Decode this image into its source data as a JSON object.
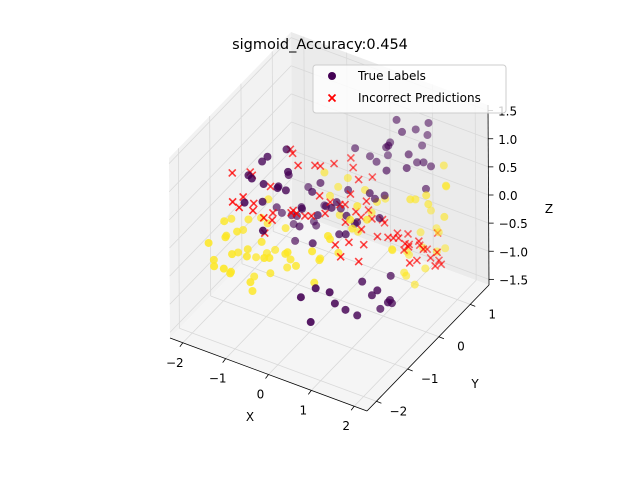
{
  "chart_data": {
    "type": "scatter",
    "title": "sigmoid_Accuracy:0.454",
    "xlabel": "X",
    "ylabel": "Y",
    "zlabel": "Z",
    "xlim": [
      -2.3,
      2.3
    ],
    "ylim": [
      -2.3,
      1.6
    ],
    "zlim": [
      -1.6,
      1.6
    ],
    "x_ticks": [
      "−2",
      "−1",
      "0",
      "1",
      "2"
    ],
    "y_ticks": [
      "−2",
      "−1",
      "0",
      "1"
    ],
    "z_ticks": [
      "1.5",
      "1.0",
      "0.5",
      "0.0",
      "−0.5",
      "−1.0",
      "−1.5"
    ],
    "grid": true,
    "legend": {
      "position": "top-right",
      "entries": [
        {
          "label": "True Labels",
          "marker": "circle",
          "color": "#440154"
        },
        {
          "label": "Incorrect Predictions",
          "marker": "x",
          "color": "#ff0000"
        }
      ]
    },
    "colors": {
      "class0": "#440154",
      "class1": "#fde725",
      "incorrect": "#ff0000"
    },
    "series": [
      {
        "name": "True Labels",
        "class0_points": [
          [
            -0.9,
            -1.2,
            0.9
          ],
          [
            -1.1,
            -0.8,
            1.1
          ],
          [
            -0.7,
            -1.0,
            0.8
          ],
          [
            -1.2,
            -1.4,
            0.6
          ],
          [
            -0.5,
            -1.3,
            1.0
          ],
          [
            -0.8,
            -0.6,
            1.2
          ],
          [
            -1.0,
            -1.1,
            0.5
          ],
          [
            -0.6,
            -0.9,
            0.7
          ],
          [
            -1.3,
            -0.7,
            0.9
          ],
          [
            -0.4,
            -1.1,
            1.2
          ],
          [
            -0.9,
            -0.4,
            0.6
          ],
          [
            -1.1,
            -1.3,
            1.0
          ],
          [
            -0.3,
            -0.8,
            0.4
          ],
          [
            -0.7,
            -1.5,
            0.3
          ],
          [
            -1.4,
            -1.0,
            0.8
          ],
          [
            0.8,
            0.9,
            1.1
          ],
          [
            1.1,
            0.7,
            0.9
          ],
          [
            0.9,
            1.2,
            1.0
          ],
          [
            1.3,
            0.9,
            0.7
          ],
          [
            0.6,
            1.0,
            1.2
          ],
          [
            1.0,
            1.1,
            0.5
          ],
          [
            1.2,
            0.5,
            0.8
          ],
          [
            0.7,
            0.6,
            1.0
          ],
          [
            1.4,
            1.0,
            0.6
          ],
          [
            0.5,
            0.8,
            0.8
          ],
          [
            1.1,
            1.3,
            0.9
          ],
          [
            0.8,
            0.4,
            0.7
          ],
          [
            1.5,
            0.7,
            0.4
          ],
          [
            0.9,
            1.4,
            0.6
          ],
          [
            1.2,
            1.2,
            1.2
          ],
          [
            0.3,
            -0.2,
            0.1
          ],
          [
            -0.2,
            0.3,
            -0.2
          ],
          [
            0.1,
            -0.4,
            0.3
          ],
          [
            -0.4,
            0.1,
            -0.1
          ],
          [
            0.2,
            0.2,
            -0.3
          ],
          [
            0.0,
            -0.1,
            0.2
          ],
          [
            -0.3,
            -0.3,
            0.0
          ],
          [
            0.4,
            0.0,
            -0.1
          ],
          [
            -0.1,
            0.4,
            0.1
          ],
          [
            0.2,
            -0.3,
            -0.2
          ],
          [
            -0.6,
            0.2,
            0.2
          ],
          [
            0.5,
            -0.5,
            0.0
          ],
          [
            -0.2,
            -0.6,
            -0.3
          ],
          [
            0.6,
            0.3,
            0.2
          ],
          [
            -0.5,
            -0.2,
            0.3
          ],
          [
            1.4,
            -0.9,
            -0.6
          ],
          [
            1.6,
            -0.6,
            -0.8
          ],
          [
            1.2,
            -1.1,
            -0.9
          ],
          [
            1.5,
            -0.4,
            -1.0
          ],
          [
            1.1,
            -0.8,
            -0.5
          ],
          [
            1.7,
            -0.8,
            -0.7
          ],
          [
            1.3,
            -0.5,
            -1.1
          ],
          [
            1.0,
            -1.2,
            -0.8
          ],
          [
            1.6,
            -1.0,
            -0.4
          ],
          [
            1.4,
            -0.3,
            -0.6
          ],
          [
            -1.5,
            0.5,
            -0.8
          ],
          [
            -1.2,
            0.8,
            -1.0
          ],
          [
            -1.7,
            0.3,
            -0.6
          ],
          [
            -1.0,
            0.6,
            -0.9
          ],
          [
            -1.4,
            0.9,
            -0.5
          ],
          [
            -1.6,
            0.7,
            -1.1
          ],
          [
            -1.3,
            0.4,
            -0.7
          ],
          [
            -1.1,
            1.0,
            -0.8
          ],
          [
            -1.8,
            0.6,
            -0.9
          ],
          [
            -1.2,
            0.2,
            -1.0
          ],
          [
            0.6,
            -1.6,
            -0.3
          ],
          [
            0.9,
            -1.4,
            -0.6
          ],
          [
            0.4,
            -1.8,
            -0.4
          ],
          [
            0.7,
            -1.9,
            -0.7
          ],
          [
            1.0,
            -1.7,
            -0.2
          ],
          [
            0.2,
            0.9,
            0.4
          ],
          [
            -0.1,
            1.1,
            0.3
          ],
          [
            0.3,
            1.2,
            0.6
          ],
          [
            -0.3,
            0.9,
            0.5
          ],
          [
            0.1,
            1.4,
            0.2
          ],
          [
            0.9,
            0.2,
            0.4
          ],
          [
            1.0,
            -0.1,
            0.2
          ],
          [
            0.7,
            0.0,
            0.5
          ],
          [
            -0.8,
            -0.2,
            -0.4
          ],
          [
            -0.9,
            0.0,
            -0.2
          ]
        ],
        "class1_points": [
          [
            -1.5,
            -0.9,
            -0.6
          ],
          [
            -1.7,
            -0.6,
            -0.3
          ],
          [
            -1.3,
            -1.2,
            -0.5
          ],
          [
            -1.8,
            -0.8,
            -0.8
          ],
          [
            -1.4,
            -0.4,
            -0.4
          ],
          [
            -1.6,
            -1.1,
            -0.2
          ],
          [
            -1.9,
            -0.5,
            -0.6
          ],
          [
            -1.2,
            -0.7,
            -0.7
          ],
          [
            -1.5,
            -1.4,
            -0.4
          ],
          [
            -1.7,
            -0.2,
            -0.5
          ],
          [
            -1.3,
            -0.3,
            -0.9
          ],
          [
            -1.1,
            -1.0,
            -0.3
          ],
          [
            -2.0,
            -0.9,
            -0.5
          ],
          [
            -1.6,
            -0.5,
            -1.0
          ],
          [
            -1.4,
            -1.6,
            -0.6
          ],
          [
            -0.9,
            -1.0,
            -0.8
          ],
          [
            -1.0,
            -1.5,
            -0.7
          ],
          [
            -1.8,
            -1.2,
            -0.3
          ],
          [
            -1.2,
            -0.1,
            -0.6
          ],
          [
            -0.8,
            -0.6,
            -0.9
          ],
          [
            -1.9,
            -1.1,
            -0.1
          ],
          [
            -1.5,
            -0.7,
            -1.2
          ],
          [
            -1.1,
            -1.3,
            -1.0
          ],
          [
            -2.1,
            -0.6,
            -0.4
          ],
          [
            -1.6,
            -1.3,
            -0.8
          ],
          [
            -0.4,
            -1.2,
            -0.2
          ],
          [
            -0.2,
            -1.4,
            0.0
          ],
          [
            -0.6,
            -1.6,
            -0.1
          ],
          [
            -0.3,
            -1.0,
            -0.5
          ],
          [
            -0.7,
            -1.3,
            -0.3
          ],
          [
            1.2,
            1.0,
            -0.9
          ],
          [
            1.4,
            0.8,
            -1.1
          ],
          [
            1.0,
            1.2,
            -0.8
          ],
          [
            1.5,
            1.1,
            -0.6
          ],
          [
            1.1,
            0.6,
            -1.2
          ],
          [
            1.3,
            1.3,
            -0.7
          ],
          [
            0.9,
            0.9,
            -1.0
          ],
          [
            1.6,
            0.9,
            -0.8
          ],
          [
            1.2,
            0.4,
            -1.0
          ],
          [
            0.8,
            1.1,
            -1.2
          ],
          [
            1.0,
            0.3,
            -0.6
          ],
          [
            1.3,
            0.6,
            -1.3
          ],
          [
            1.5,
            1.3,
            -1.0
          ],
          [
            0.7,
            0.7,
            -0.9
          ],
          [
            1.1,
            1.4,
            -0.5
          ],
          [
            1.7,
            0.5,
            0.3
          ],
          [
            1.9,
            0.8,
            0.5
          ],
          [
            1.6,
            1.2,
            0.2
          ],
          [
            1.8,
            0.3,
            0.6
          ],
          [
            2.0,
            0.6,
            0.1
          ],
          [
            1.5,
            0.2,
            0.5
          ],
          [
            1.7,
            1.0,
            0.7
          ],
          [
            1.4,
            0.5,
            0.3
          ],
          [
            0.8,
            -0.7,
            0.3
          ],
          [
            1.0,
            -0.5,
            0.4
          ],
          [
            0.5,
            -1.0,
            0.2
          ],
          [
            0.7,
            -0.4,
            0.5
          ],
          [
            0.3,
            -1.3,
            0.1
          ],
          [
            0.9,
            -0.9,
            0.6
          ],
          [
            0.6,
            -1.2,
            0.4
          ],
          [
            -0.6,
            0.5,
            -0.2
          ],
          [
            -0.4,
            0.8,
            0.0
          ],
          [
            -0.8,
            0.6,
            0.1
          ],
          [
            -0.3,
            0.4,
            -0.4
          ],
          [
            -0.7,
            0.9,
            -0.3
          ],
          [
            0.3,
            0.6,
            -0.3
          ],
          [
            0.0,
            0.8,
            -0.1
          ],
          [
            0.5,
            0.5,
            0.0
          ],
          [
            0.2,
            0.3,
            -0.5
          ],
          [
            0.4,
            0.9,
            -0.2
          ],
          [
            -1.9,
            -1.6,
            -0.2
          ],
          [
            -1.7,
            -1.7,
            -0.5
          ],
          [
            -2.0,
            -1.3,
            -0.7
          ],
          [
            -1.4,
            -1.8,
            -0.4
          ],
          [
            -1.6,
            -0.1,
            -0.2
          ],
          [
            0.1,
            -0.8,
            -0.4
          ],
          [
            -0.1,
            -0.5,
            -0.6
          ],
          [
            0.4,
            -0.6,
            -0.3
          ],
          [
            -0.5,
            -0.9,
            -0.5
          ],
          [
            0.2,
            -1.1,
            -0.6
          ]
        ]
      },
      {
        "name": "Incorrect Predictions",
        "points": [
          [
            -1.3,
            -1.0,
            0.2
          ],
          [
            -1.0,
            -0.8,
            0.0
          ],
          [
            -1.5,
            -0.7,
            0.1
          ],
          [
            -1.2,
            -0.5,
            -0.1
          ],
          [
            -0.9,
            -1.2,
            0.3
          ],
          [
            -1.4,
            -0.3,
            0.2
          ],
          [
            -1.1,
            -0.9,
            -0.2
          ],
          [
            -0.7,
            -0.6,
            0.1
          ],
          [
            -1.6,
            -0.9,
            0.3
          ],
          [
            -0.8,
            -0.4,
            0.0
          ],
          [
            -0.5,
            -0.7,
            0.2
          ],
          [
            -0.6,
            -0.3,
            -0.1
          ],
          [
            -0.3,
            -0.5,
            0.1
          ],
          [
            -0.4,
            -0.1,
            0.2
          ],
          [
            -0.2,
            -0.2,
            0.0
          ],
          [
            0.0,
            0.0,
            0.1
          ],
          [
            0.2,
            -0.1,
            -0.1
          ],
          [
            0.1,
            0.2,
            0.2
          ],
          [
            0.3,
            0.1,
            0.0
          ],
          [
            0.5,
            0.0,
            -0.2
          ],
          [
            0.4,
            0.3,
            0.1
          ],
          [
            0.6,
            0.2,
            -0.1
          ],
          [
            0.8,
            0.1,
            -0.3
          ],
          [
            0.7,
            0.4,
            -0.2
          ],
          [
            0.9,
            0.3,
            -0.4
          ],
          [
            1.0,
            0.5,
            -0.5
          ],
          [
            1.1,
            0.2,
            -0.3
          ],
          [
            1.2,
            0.4,
            -0.6
          ],
          [
            0.9,
            0.6,
            -0.5
          ],
          [
            1.3,
            0.3,
            -0.4
          ],
          [
            1.1,
            0.7,
            -0.7
          ],
          [
            1.4,
            0.6,
            -0.5
          ],
          [
            1.0,
            0.8,
            -0.6
          ],
          [
            1.2,
            0.9,
            -0.8
          ],
          [
            1.5,
            0.4,
            -0.7
          ],
          [
            0.6,
            0.6,
            -0.4
          ],
          [
            0.3,
            0.5,
            -0.2
          ],
          [
            -0.1,
            0.3,
            -0.1
          ],
          [
            -0.3,
            0.1,
            0.0
          ],
          [
            0.2,
            0.4,
            -0.3
          ],
          [
            -1.8,
            -0.4,
            0.4
          ],
          [
            -1.7,
            -1.1,
            0.3
          ],
          [
            -2.0,
            -0.7,
            0.5
          ],
          [
            -1.9,
            -0.2,
            0.2
          ],
          [
            -1.4,
            -1.3,
            0.4
          ],
          [
            -0.9,
            -0.1,
            0.6
          ],
          [
            -0.6,
            0.2,
            0.5
          ],
          [
            -1.1,
            0.0,
            0.7
          ],
          [
            -0.8,
            0.3,
            0.4
          ],
          [
            -1.3,
            0.2,
            0.6
          ],
          [
            0.5,
            -0.4,
            -0.2
          ],
          [
            0.7,
            -0.2,
            -0.3
          ],
          [
            0.4,
            -0.7,
            -0.1
          ],
          [
            0.8,
            -0.5,
            -0.4
          ],
          [
            0.6,
            -0.8,
            -0.2
          ],
          [
            1.3,
            1.0,
            -0.9
          ],
          [
            1.6,
            0.7,
            -0.8
          ],
          [
            1.4,
            1.2,
            -0.7
          ],
          [
            1.7,
            0.9,
            -1.0
          ],
          [
            1.5,
            1.1,
            -1.1
          ],
          [
            -0.2,
            0.7,
            0.3
          ],
          [
            -0.5,
            0.5,
            0.4
          ],
          [
            0.0,
            0.6,
            0.2
          ],
          [
            -0.4,
            0.9,
            0.3
          ],
          [
            0.1,
            0.9,
            0.1
          ],
          [
            1.8,
            0.2,
            -0.3
          ],
          [
            1.9,
            0.5,
            -0.5
          ],
          [
            1.6,
            0.0,
            -0.2
          ],
          [
            2.0,
            0.3,
            -0.6
          ],
          [
            1.7,
            -0.1,
            -0.4
          ]
        ]
      }
    ]
  }
}
